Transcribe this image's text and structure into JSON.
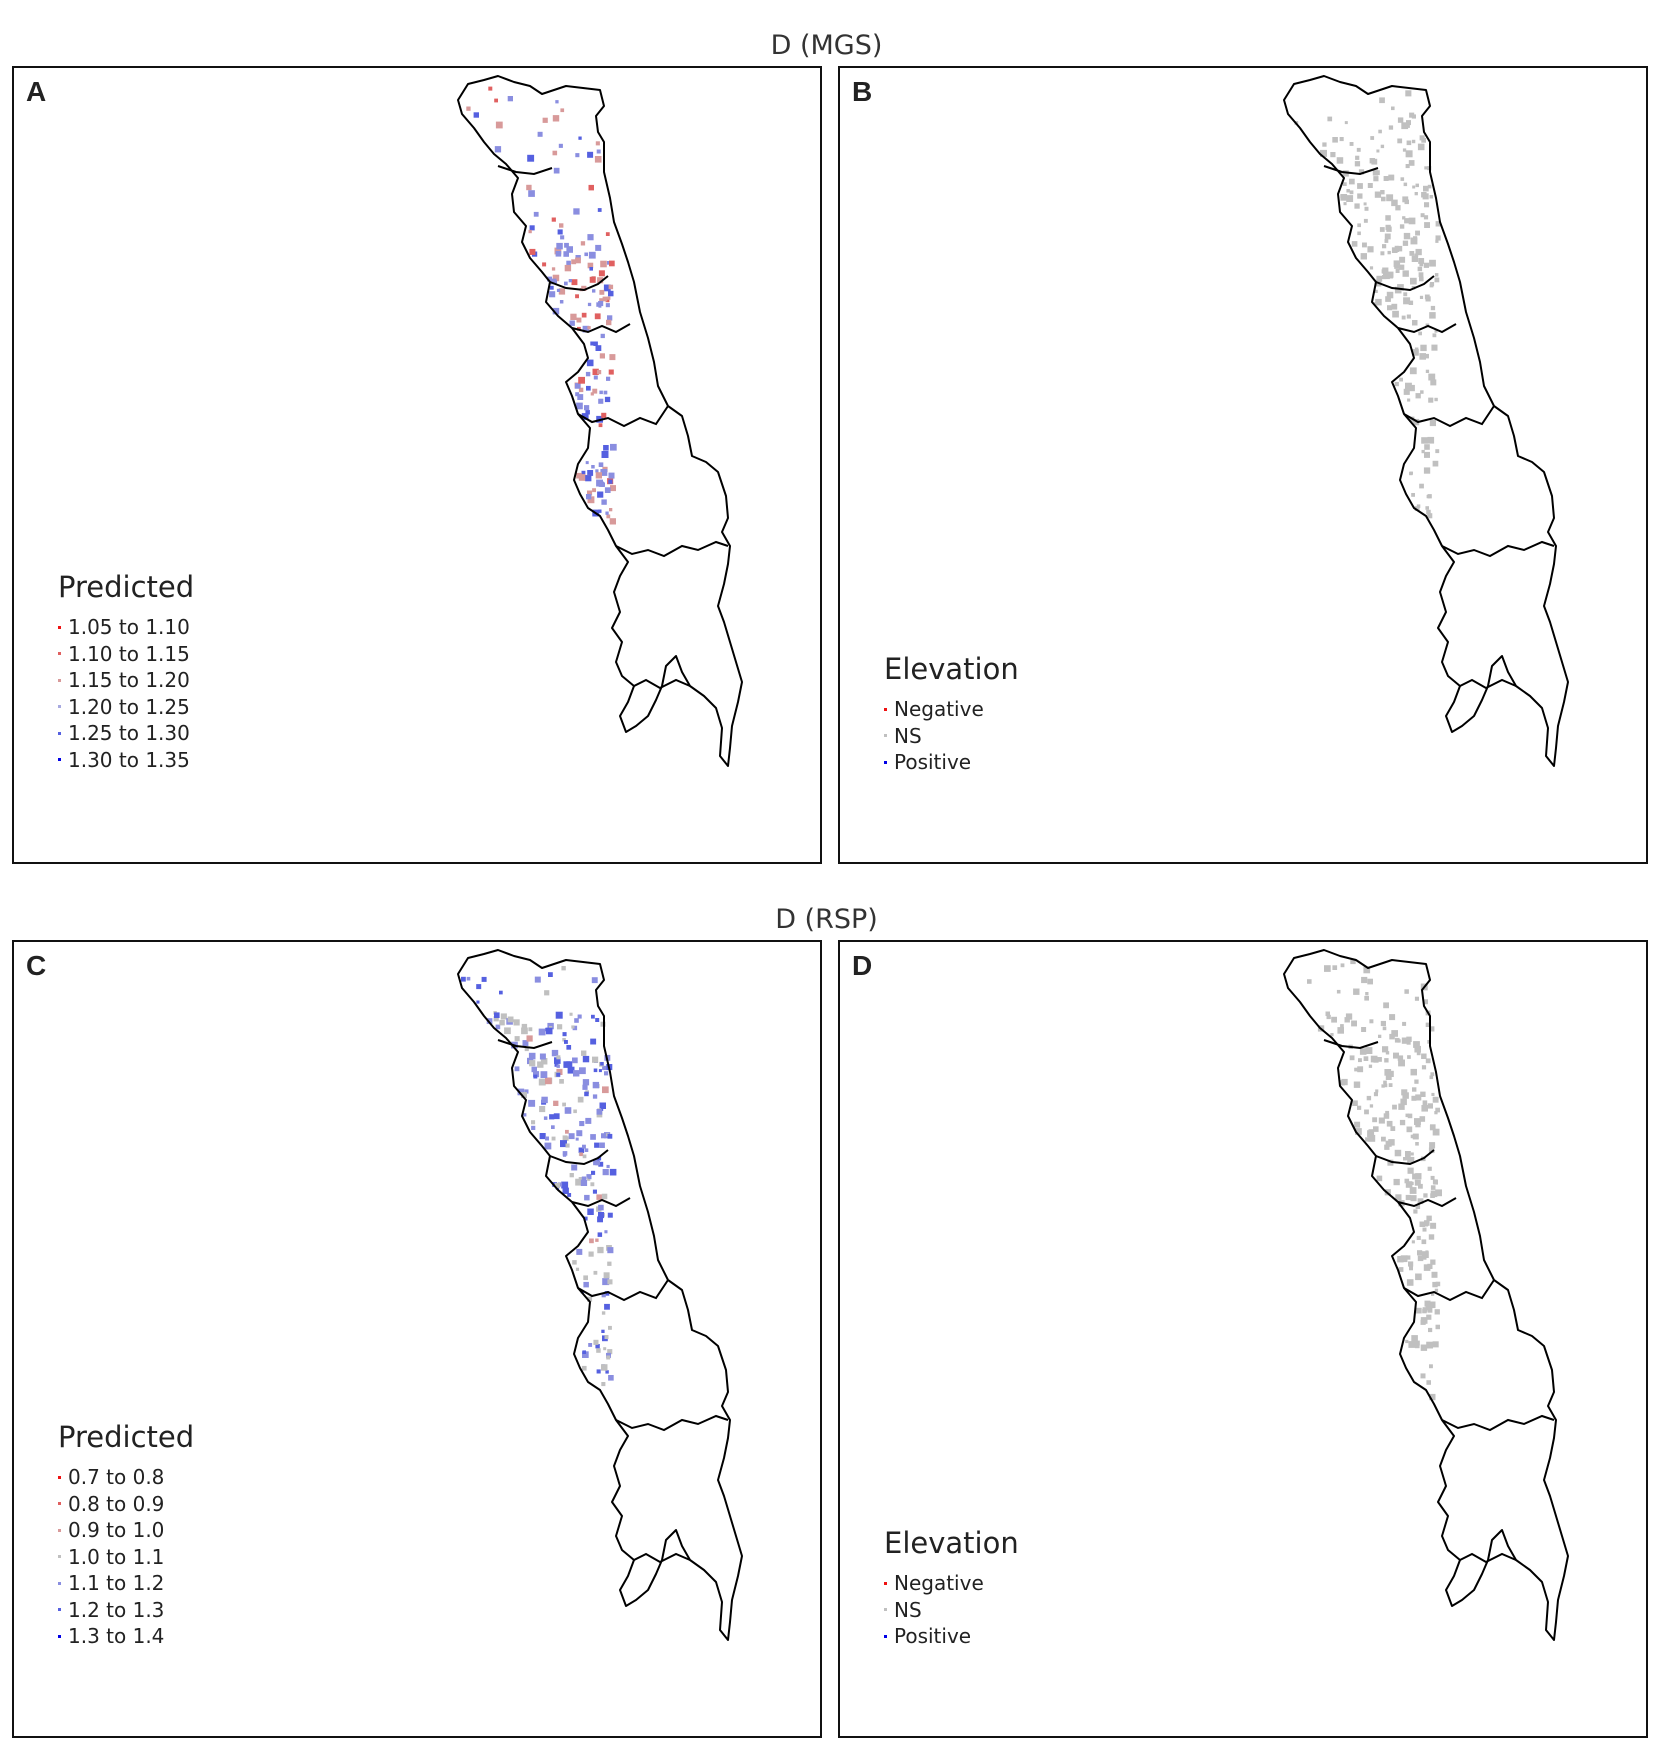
{
  "colors": {
    "outline": "#000000",
    "gray": "#c0c0c0",
    "blue": "#0000e6",
    "red": "#ee1111",
    "light_blue": "#8a8ee0",
    "mid_blue": "#5560e0",
    "light_red": "#d89a9a",
    "mid_red": "#e06060"
  },
  "row_titles": [
    "D (MGS)",
    "D (RSP)"
  ],
  "panels": [
    {
      "letter": "A",
      "legend": {
        "title": "Predicted",
        "items": [
          {
            "label": "1.05 to 1.10",
            "color": "#ee1111"
          },
          {
            "label": "1.10 to 1.15",
            "color": "#e06060"
          },
          {
            "label": "1.15 to 1.20",
            "color": "#d89a9a"
          },
          {
            "label": "1.20 to 1.25",
            "color": "#a8aae0"
          },
          {
            "label": "1.25 to 1.30",
            "color": "#5560e0"
          },
          {
            "label": "1.30 to 1.35",
            "color": "#0000e6"
          }
        ]
      }
    },
    {
      "letter": "B",
      "legend": {
        "title": "Elevation",
        "items": [
          {
            "label": "Negative",
            "color": "#ee1111"
          },
          {
            "label": "NS",
            "color": "#c0c0c0"
          },
          {
            "label": "Positive",
            "color": "#0000e6"
          }
        ]
      }
    },
    {
      "letter": "C",
      "legend": {
        "title": "Predicted",
        "items": [
          {
            "label": "0.7 to 0.8",
            "color": "#ee1111"
          },
          {
            "label": "0.8 to 0.9",
            "color": "#e06060"
          },
          {
            "label": "0.9 to 1.0",
            "color": "#d89a9a"
          },
          {
            "label": "1.0 to 1.1",
            "color": "#c0c0c0"
          },
          {
            "label": "1.1 to 1.2",
            "color": "#8a8ee0"
          },
          {
            "label": "1.2 to 1.3",
            "color": "#5560e0"
          },
          {
            "label": "1.3 to 1.4",
            "color": "#0000e6"
          }
        ]
      }
    },
    {
      "letter": "D",
      "legend": {
        "title": "Elevation",
        "items": [
          {
            "label": "Negative",
            "color": "#ee1111"
          },
          {
            "label": "NS",
            "color": "#c0c0c0"
          },
          {
            "label": "Positive",
            "color": "#0000e6"
          }
        ]
      }
    }
  ]
}
